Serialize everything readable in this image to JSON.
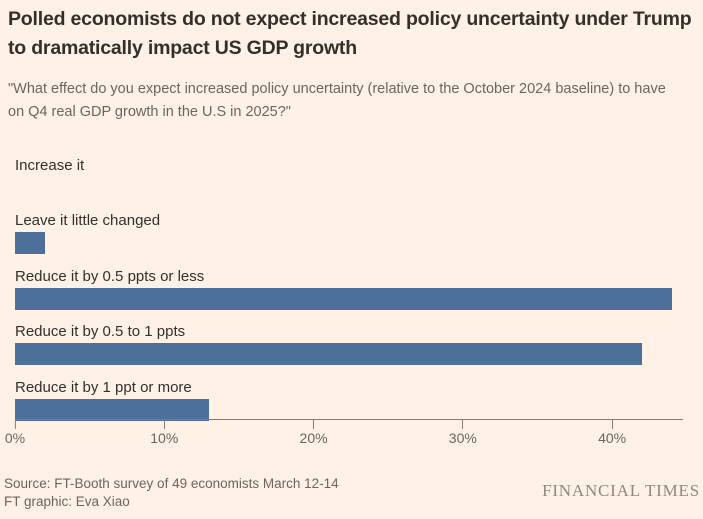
{
  "colors": {
    "background": "#FFF1E5",
    "bar": "#4D709B",
    "title_text": "#33302C",
    "muted_text": "#6B6560",
    "axis": "#847C72",
    "brand_text": "#90887E"
  },
  "chart_data": {
    "type": "bar",
    "orientation": "horizontal",
    "title": "Polled economists do not expect increased policy uncertainty under Trump to dramatically impact US GDP growth",
    "subtitle": "\"What effect do you expect increased policy uncertainty (relative to the October 2024 baseline) to have on Q4 real GDP growth in the U.S in 2025?\"",
    "categories": [
      "Increase it",
      "Leave it little changed",
      "Reduce it by 0.5 ppts or less",
      "Reduce it by 0.5 to 1 ppts",
      "Reduce it by 1 ppt or more"
    ],
    "values": [
      0,
      2,
      44,
      42,
      13
    ],
    "unit": "%",
    "xlabel": "",
    "ylabel": "",
    "xlim": [
      0,
      44.75
    ],
    "x_tick_values": [
      0,
      10,
      20,
      30,
      40
    ],
    "x_tick_labels": [
      "0%",
      "10%",
      "20%",
      "30%",
      "40%"
    ],
    "grid": false,
    "legend": false,
    "bar_color": "#4D709B"
  },
  "footer": {
    "source_line1": "Source: FT-Booth survey of 49 economists March 12-14",
    "source_line2": "FT graphic: Eva Xiao",
    "brand": "FINANCIAL TIMES"
  }
}
